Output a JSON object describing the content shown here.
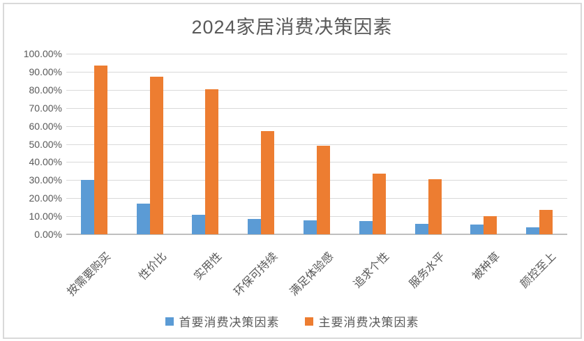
{
  "title": "2024家居消费决策因素",
  "chart_data": {
    "type": "bar",
    "title": "2024家居消费决策因素",
    "categories": [
      "按需要购买",
      "性价比",
      "实用性",
      "环保可持续",
      "满足体验感",
      "追求个性",
      "服务水平",
      "被种草",
      "颜控至上"
    ],
    "series": [
      {
        "name": "首要消费决策因素",
        "color": "#5B9BD5",
        "values": [
          30.0,
          17.0,
          11.0,
          8.6,
          7.7,
          7.4,
          5.9,
          5.5,
          4.0
        ]
      },
      {
        "name": "主要消费决策因素",
        "color": "#ED7D31",
        "values": [
          93.5,
          87.3,
          80.3,
          57.3,
          49.0,
          33.5,
          30.7,
          10.0,
          13.5
        ]
      }
    ],
    "ylabel": "",
    "xlabel": "",
    "ylim": [
      0,
      100
    ],
    "y_ticks": [
      "100.00%",
      "90.00%",
      "80.00%",
      "70.00%",
      "60.00%",
      "50.00%",
      "40.00%",
      "30.00%",
      "20.00%",
      "10.00%",
      "0.00%"
    ],
    "grid": true,
    "legend_position": "bottom"
  },
  "colors": {
    "background": "#FFFFFF",
    "border": "#D9D9D9",
    "gridline": "#D9D9D9",
    "axis_line": "#BFBFBF",
    "title_text": "#595959",
    "axis_text": "#595959",
    "series_primary": "#5B9BD5",
    "series_main": "#ED7D31"
  }
}
